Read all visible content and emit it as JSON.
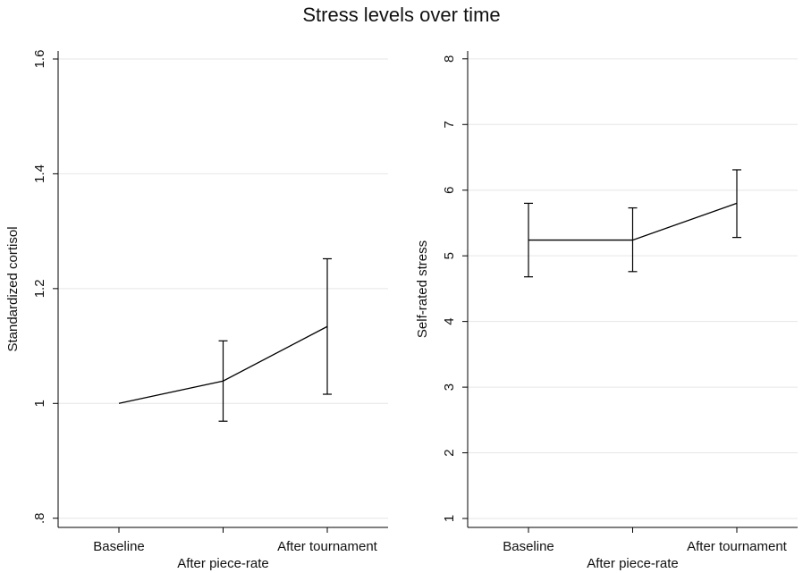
{
  "title": "Stress levels over time",
  "chart_data": [
    {
      "type": "line",
      "y_label": "Standardized cortisol",
      "categories": [
        "Baseline",
        "After piece-rate",
        "After tournament"
      ],
      "values": [
        1,
        1.039,
        1.134
      ],
      "lower": [
        null,
        0.969,
        1.016
      ],
      "upper": [
        null,
        1.109,
        1.252
      ],
      "color": "#000000",
      "ylim": [
        0.784,
        1.614
      ],
      "yticks": [
        {
          "value": 0.8,
          "label": ".8"
        },
        1,
        1.2,
        1.4,
        1.6
      ],
      "grid": true
    },
    {
      "type": "line",
      "y_label": "Self-rated stress",
      "categories": [
        "Baseline",
        "After piece-rate",
        "After tournament"
      ],
      "values": [
        5.24,
        5.24,
        5.8
      ],
      "lower": [
        4.68,
        4.76,
        5.28
      ],
      "upper": [
        5.8,
        5.73,
        6.31
      ],
      "color": "#000000",
      "ylim": [
        0.864,
        8.12
      ],
      "yticks": [
        1,
        2,
        3,
        4,
        5,
        6,
        7,
        8
      ],
      "grid": true
    }
  ]
}
